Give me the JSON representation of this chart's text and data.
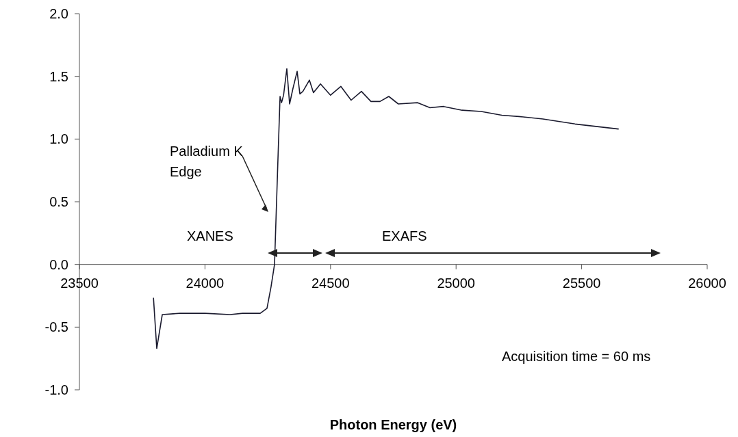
{
  "chart_data": {
    "type": "line",
    "xlabel": "Photon Energy (eV)",
    "x": [
      23795,
      23808,
      23830,
      23900,
      24000,
      24100,
      24150,
      24220,
      24247,
      24263,
      24277,
      24290,
      24299,
      24305,
      24313,
      24326,
      24337,
      24350,
      24367,
      24378,
      24390,
      24416,
      24432,
      24460,
      24500,
      24541,
      24582,
      24623,
      24661,
      24697,
      24732,
      24770,
      24847,
      24896,
      24950,
      25024,
      25100,
      25182,
      25250,
      25346,
      25474,
      25646
    ],
    "values": [
      -0.27,
      -0.67,
      -0.4,
      -0.39,
      -0.39,
      -0.4,
      -0.39,
      -0.39,
      -0.35,
      -0.18,
      0.0,
      0.8,
      1.34,
      1.29,
      1.35,
      1.56,
      1.28,
      1.4,
      1.54,
      1.36,
      1.38,
      1.47,
      1.37,
      1.44,
      1.35,
      1.42,
      1.31,
      1.38,
      1.3,
      1.3,
      1.34,
      1.28,
      1.29,
      1.25,
      1.26,
      1.23,
      1.22,
      1.19,
      1.18,
      1.16,
      1.12,
      1.08
    ],
    "color": "#1a1a2e",
    "xlim": [
      23500,
      26000
    ],
    "xticks": [
      23500,
      24000,
      24500,
      25000,
      25500,
      26000
    ],
    "ylim": [
      -1,
      2
    ],
    "yticks": [
      {
        "value": -1,
        "label": "-1.0"
      },
      {
        "value": -0.5,
        "label": "-0.5"
      },
      {
        "value": 0,
        "label": "0.0"
      },
      {
        "value": 0.5,
        "label": "0.5"
      },
      {
        "value": 1,
        "label": "1.0"
      },
      {
        "value": 1.5,
        "label": "1.5"
      },
      {
        "value": 2,
        "label": "2.0"
      }
    ],
    "grid": false,
    "marker": "none",
    "line_style": "solid",
    "annotations": [
      "Palladium K Edge",
      "XANES",
      "EXAFS",
      "Acquisition time = 60 ms"
    ]
  }
}
